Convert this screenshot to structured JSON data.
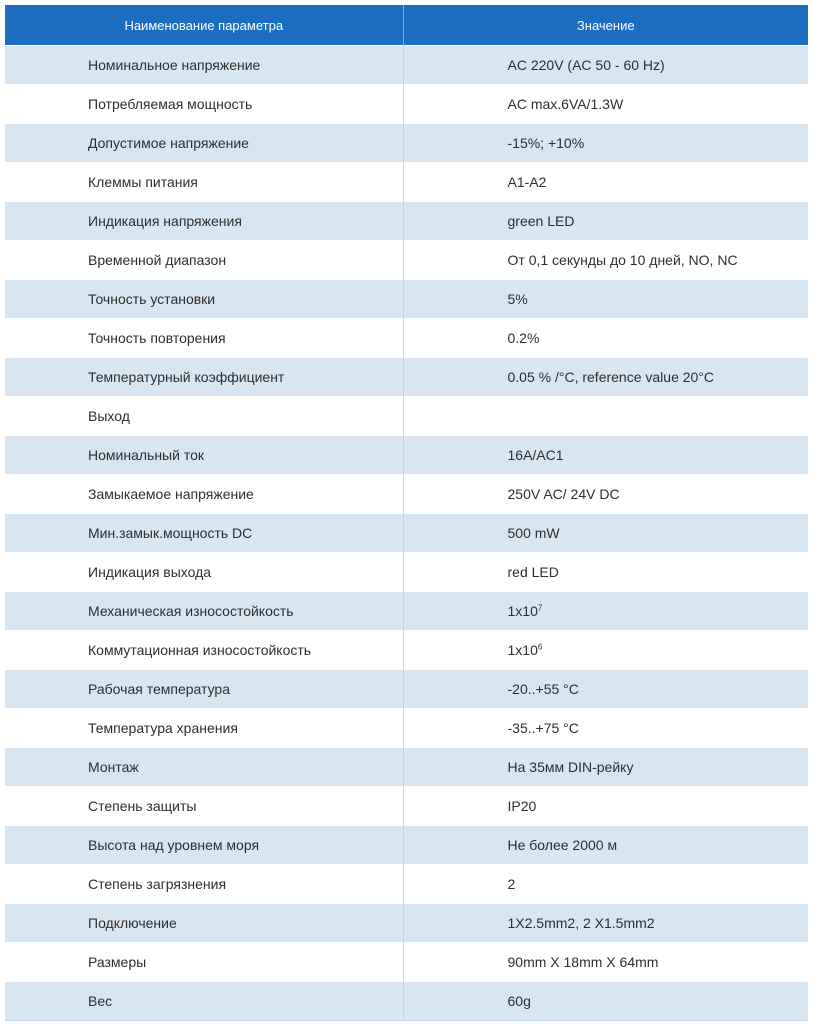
{
  "table": {
    "header": {
      "param": "Наименование параметра",
      "value": "Значение"
    },
    "rows": [
      {
        "param": "Номинальное напряжение",
        "value": "AC 220V (AC 50 - 60 Hz)"
      },
      {
        "param": "Потребляемая мощность",
        "value": "AC max.6VA/1.3W"
      },
      {
        "param": "Допустимое напряжение",
        "value": "-15%; +10%"
      },
      {
        "param": "Клеммы питания",
        "value": "A1-A2"
      },
      {
        "param": "Индикация напряжения",
        "value": "green LED"
      },
      {
        "param": "Временной диапазон",
        "value": "От 0,1 секунды до 10 дней, NO, NC"
      },
      {
        "param": "Точность установки",
        "value": "5%"
      },
      {
        "param": "Точность повторения",
        "value": "0.2%"
      },
      {
        "param": "Температурный коэффициент",
        "value": "0.05 % /°C, reference value 20°C"
      },
      {
        "param": "Выход",
        "value": ""
      },
      {
        "param": "Номинальный ток",
        "value": "16A/AC1"
      },
      {
        "param": "Замыкаемое напряжение",
        "value": "250V AC/ 24V DC"
      },
      {
        "param": "Мин.замык.мощность DC",
        "value": "500 mW"
      },
      {
        "param": "Индикация выхода",
        "value": "red LED"
      },
      {
        "param": "Механическая износостойкость",
        "value": "1x10",
        "value_sup": "7"
      },
      {
        "param": "Коммутационная износостойкость",
        "value": "1x10",
        "value_sup": "6"
      },
      {
        "param": "Рабочая температура",
        "value": "-20..+55 °C"
      },
      {
        "param": "Температура хранения",
        "value": "-35..+75 °C"
      },
      {
        "param": "Монтаж",
        "value": "На 35мм DIN-рейку"
      },
      {
        "param": "Степень защиты",
        "value": "IP20"
      },
      {
        "param": "Высота над уровнем моря",
        "value": "Не более 2000 м"
      },
      {
        "param": "Степень загрязнения",
        "value": "2"
      },
      {
        "param": "Подключение",
        "value": "1X2.5mm2, 2 X1.5mm2"
      },
      {
        "param": "Размеры",
        "value": "90mm X 18mm X 64mm"
      },
      {
        "param": "Вес",
        "value": "60g"
      }
    ]
  },
  "colors": {
    "header_bg": "#1c6fc0",
    "stripe_bg": "#d7e6f1",
    "text": "#2e2e2e"
  }
}
